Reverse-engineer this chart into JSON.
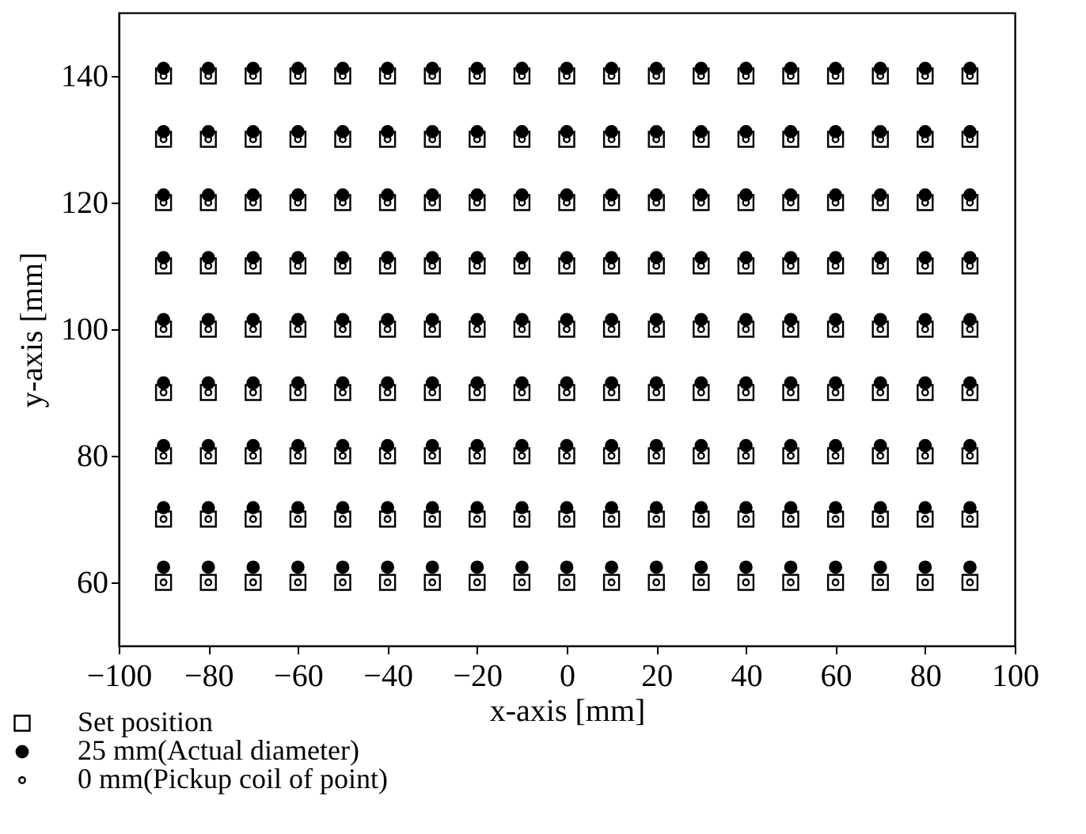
{
  "chart_data": {
    "type": "scatter",
    "xlabel": "x-axis [mm]",
    "ylabel": "y-axis [mm]",
    "x": [
      -90,
      -80,
      -70,
      -60,
      -50,
      -40,
      -30,
      -20,
      -10,
      0,
      10,
      20,
      30,
      40,
      50,
      60,
      70,
      80,
      90,
      -90,
      -80,
      -70,
      -60,
      -50,
      -40,
      -30,
      -20,
      -10,
      0,
      10,
      20,
      30,
      40,
      50,
      60,
      70,
      80,
      90,
      -90,
      -80,
      -70,
      -60,
      -50,
      -40,
      -30,
      -20,
      -10,
      0,
      10,
      20,
      30,
      40,
      50,
      60,
      70,
      80,
      90,
      -90,
      -80,
      -70,
      -60,
      -50,
      -40,
      -30,
      -20,
      -10,
      0,
      10,
      20,
      30,
      40,
      50,
      60,
      70,
      80,
      90,
      -90,
      -80,
      -70,
      -60,
      -50,
      -40,
      -30,
      -20,
      -10,
      0,
      10,
      20,
      30,
      40,
      50,
      60,
      70,
      80,
      90,
      -90,
      -80,
      -70,
      -60,
      -50,
      -40,
      -30,
      -20,
      -10,
      0,
      10,
      20,
      30,
      40,
      50,
      60,
      70,
      80,
      90,
      -90,
      -80,
      -70,
      -60,
      -50,
      -40,
      -30,
      -20,
      -10,
      0,
      10,
      20,
      30,
      40,
      50,
      60,
      70,
      80,
      90,
      -90,
      -80,
      -70,
      -60,
      -50,
      -40,
      -30,
      -20,
      -10,
      0,
      10,
      20,
      30,
      40,
      50,
      60,
      70,
      80,
      90,
      -90,
      -80,
      -70,
      -60,
      -50,
      -40,
      -30,
      -20,
      -10,
      0,
      10,
      20,
      30,
      40,
      50,
      60,
      70,
      80,
      90
    ],
    "series": [
      {
        "name": "Set position",
        "color": "#000000",
        "marker": "square",
        "values": [
          60,
          60,
          60,
          60,
          60,
          60,
          60,
          60,
          60,
          60,
          60,
          60,
          60,
          60,
          60,
          60,
          60,
          60,
          60,
          70,
          70,
          70,
          70,
          70,
          70,
          70,
          70,
          70,
          70,
          70,
          70,
          70,
          70,
          70,
          70,
          70,
          70,
          70,
          80,
          80,
          80,
          80,
          80,
          80,
          80,
          80,
          80,
          80,
          80,
          80,
          80,
          80,
          80,
          80,
          80,
          80,
          80,
          90,
          90,
          90,
          90,
          90,
          90,
          90,
          90,
          90,
          90,
          90,
          90,
          90,
          90,
          90,
          90,
          90,
          90,
          90,
          100,
          100,
          100,
          100,
          100,
          100,
          100,
          100,
          100,
          100,
          100,
          100,
          100,
          100,
          100,
          100,
          100,
          100,
          100,
          110,
          110,
          110,
          110,
          110,
          110,
          110,
          110,
          110,
          110,
          110,
          110,
          110,
          110,
          110,
          110,
          110,
          110,
          110,
          120,
          120,
          120,
          120,
          120,
          120,
          120,
          120,
          120,
          120,
          120,
          120,
          120,
          120,
          120,
          120,
          120,
          120,
          120,
          130,
          130,
          130,
          130,
          130,
          130,
          130,
          130,
          130,
          130,
          130,
          130,
          130,
          130,
          130,
          130,
          130,
          130,
          130,
          140,
          140,
          140,
          140,
          140,
          140,
          140,
          140,
          140,
          140,
          140,
          140,
          140,
          140,
          140,
          140,
          140,
          140,
          140
        ]
      },
      {
        "name": "25 mm(Actual diameter)",
        "color": "#000000",
        "marker": "circle",
        "values": [
          62.4,
          62.4,
          62.4,
          62.4,
          62.4,
          62.4,
          62.4,
          62.4,
          62.4,
          62.4,
          62.4,
          62.4,
          62.4,
          62.4,
          62.4,
          62.4,
          62.4,
          62.4,
          62.4,
          71.8,
          71.8,
          71.8,
          71.8,
          71.8,
          71.8,
          71.8,
          71.8,
          71.8,
          71.8,
          71.8,
          71.8,
          71.8,
          71.8,
          71.8,
          71.8,
          71.8,
          71.8,
          71.8,
          81.6,
          81.6,
          81.6,
          81.6,
          81.6,
          81.6,
          81.6,
          81.6,
          81.6,
          81.6,
          81.6,
          81.6,
          81.6,
          81.6,
          81.6,
          81.6,
          81.6,
          81.6,
          81.6,
          91.5,
          91.5,
          91.5,
          91.5,
          91.5,
          91.5,
          91.5,
          91.5,
          91.5,
          91.5,
          91.5,
          91.5,
          91.5,
          91.5,
          91.5,
          91.5,
          91.5,
          91.5,
          91.5,
          101.5,
          101.5,
          101.5,
          101.5,
          101.5,
          101.5,
          101.5,
          101.5,
          101.5,
          101.5,
          101.5,
          101.5,
          101.5,
          101.5,
          101.5,
          101.5,
          101.5,
          101.5,
          101.5,
          111.3,
          111.3,
          111.3,
          111.3,
          111.3,
          111.3,
          111.3,
          111.3,
          111.3,
          111.3,
          111.3,
          111.3,
          111.3,
          111.3,
          111.3,
          111.3,
          111.3,
          111.3,
          111.3,
          121.2,
          121.2,
          121.2,
          121.2,
          121.2,
          121.2,
          121.2,
          121.2,
          121.2,
          121.2,
          121.2,
          121.2,
          121.2,
          121.2,
          121.2,
          121.2,
          121.2,
          121.2,
          121.2,
          131.2,
          131.2,
          131.2,
          131.2,
          131.2,
          131.2,
          131.2,
          131.2,
          131.2,
          131.2,
          131.2,
          131.2,
          131.2,
          131.2,
          131.2,
          131.2,
          131.2,
          131.2,
          131.2,
          141.2,
          141.2,
          141.2,
          141.2,
          141.2,
          141.2,
          141.2,
          141.2,
          141.2,
          141.2,
          141.2,
          141.2,
          141.2,
          141.2,
          141.2,
          141.2,
          141.2,
          141.2,
          141.2
        ]
      },
      {
        "name": "0 mm(Pickup coil of point)",
        "color": "#000000",
        "marker": "circle",
        "values": [
          60,
          60,
          60,
          60,
          60,
          60,
          60,
          60,
          60,
          60,
          60,
          60,
          60,
          60,
          60,
          60,
          60,
          60,
          60,
          70,
          70,
          70,
          70,
          70,
          70,
          70,
          70,
          70,
          70,
          70,
          70,
          70,
          70,
          70,
          70,
          70,
          70,
          70,
          80,
          80,
          80,
          80,
          80,
          80,
          80,
          80,
          80,
          80,
          80,
          80,
          80,
          80,
          80,
          80,
          80,
          80,
          80,
          90,
          90,
          90,
          90,
          90,
          90,
          90,
          90,
          90,
          90,
          90,
          90,
          90,
          90,
          90,
          90,
          90,
          90,
          90,
          100,
          100,
          100,
          100,
          100,
          100,
          100,
          100,
          100,
          100,
          100,
          100,
          100,
          100,
          100,
          100,
          100,
          100,
          100,
          110,
          110,
          110,
          110,
          110,
          110,
          110,
          110,
          110,
          110,
          110,
          110,
          110,
          110,
          110,
          110,
          110,
          110,
          110,
          120,
          120,
          120,
          120,
          120,
          120,
          120,
          120,
          120,
          120,
          120,
          120,
          120,
          120,
          120,
          120,
          120,
          120,
          120,
          130,
          130,
          130,
          130,
          130,
          130,
          130,
          130,
          130,
          130,
          130,
          130,
          130,
          130,
          130,
          130,
          130,
          130,
          130,
          140,
          140,
          140,
          140,
          140,
          140,
          140,
          140,
          140,
          140,
          140,
          140,
          140,
          140,
          140,
          140,
          140,
          140,
          140
        ]
      }
    ],
    "xlim": [
      -100,
      100
    ],
    "xticks": [
      -100,
      -80,
      -60,
      -40,
      -20,
      0,
      20,
      40,
      60,
      80,
      100
    ],
    "ylim": [
      50,
      150
    ],
    "yticks": [
      60,
      80,
      100,
      120,
      140
    ],
    "grid": false,
    "legend": "bottom left"
  }
}
